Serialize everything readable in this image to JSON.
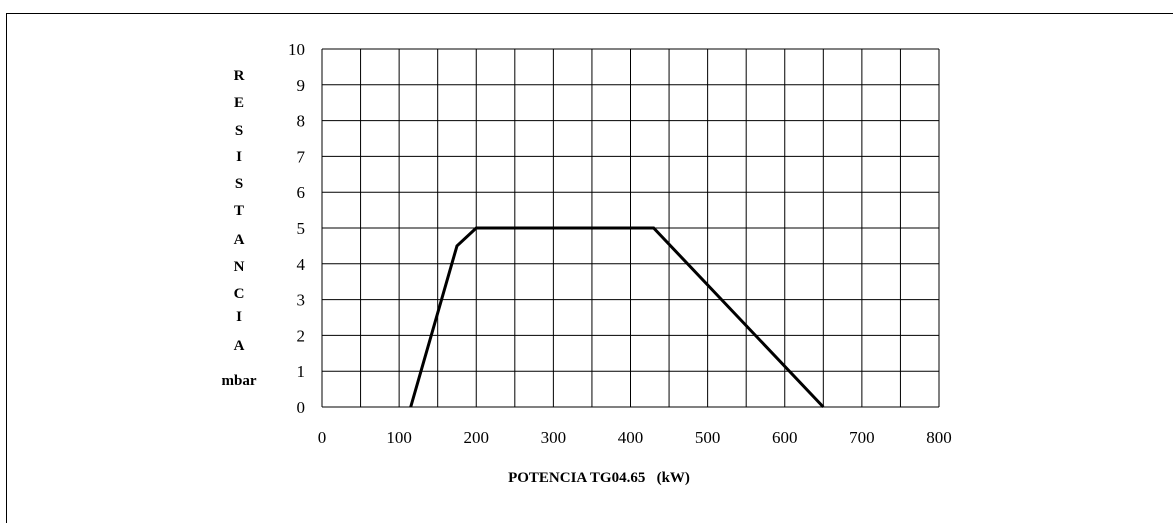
{
  "chart_data": {
    "type": "line",
    "title": "",
    "xlabel": "POTENCIA TG04.65   (kW)",
    "ylabel_letters": [
      "R",
      "E",
      "S",
      "I",
      "S",
      "T",
      "A",
      "N",
      "C",
      "I",
      "A"
    ],
    "ylabel_unit": "mbar",
    "xlim": [
      0,
      800
    ],
    "ylim": [
      0,
      10
    ],
    "x_ticks": [
      0,
      100,
      200,
      300,
      400,
      500,
      600,
      700,
      800
    ],
    "y_ticks": [
      0,
      1,
      2,
      3,
      4,
      5,
      6,
      7,
      8,
      9,
      10
    ],
    "x_gridlines": [
      0,
      50,
      100,
      150,
      200,
      250,
      300,
      350,
      400,
      450,
      500,
      550,
      600,
      650,
      700,
      750,
      800
    ],
    "y_gridlines": [
      0,
      1,
      2,
      3,
      4,
      5,
      6,
      7,
      8,
      9,
      10
    ],
    "grid": true,
    "series": [
      {
        "x": [
          115,
          175,
          200,
          430,
          650
        ],
        "y": [
          0,
          4.5,
          5,
          5,
          0
        ],
        "color": "#000000"
      }
    ]
  },
  "colors": {
    "line": "#000000",
    "grid": "#000000",
    "background": "#ffffff"
  }
}
